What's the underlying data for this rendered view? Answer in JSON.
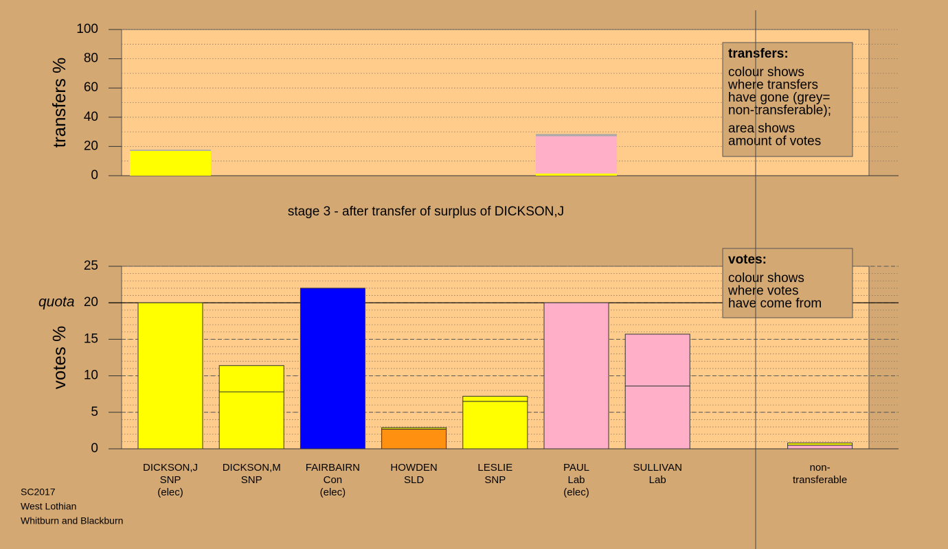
{
  "chart_data": [
    {
      "type": "stacked-bar",
      "ylabel": "transfers %",
      "ylim": [
        0,
        100
      ],
      "yticks": [
        0,
        20,
        40,
        60,
        80,
        100
      ],
      "minor_grid": 10,
      "stacks": [
        [
          {
            "color": "#ffff00",
            "value": 17
          },
          {
            "color": "#aaaaaa",
            "value": 0.8
          }
        ],
        [],
        [],
        [],
        [],
        [
          {
            "color": "#ffff00",
            "value": 1.5
          },
          {
            "color": "#ffb0c8",
            "value": 25.5
          },
          {
            "color": "#aaaaaa",
            "value": 1.5
          }
        ],
        [],
        [],
        []
      ],
      "note": {
        "title": "transfers:",
        "lines": [
          "colour shows",
          "where transfers",
          "have gone (grey=",
          "non-transferable);",
          "area shows",
          "amount of votes"
        ]
      }
    },
    {
      "type": "stacked-bar",
      "title": "stage 3 - after transfer of surplus of DICKSON,J",
      "ylabel": "votes %",
      "ylim": [
        0,
        25
      ],
      "yticks": [
        0,
        5,
        10,
        15,
        20,
        25
      ],
      "minor_grid": 1,
      "quota": {
        "value": 20,
        "label": "quota"
      },
      "categories": [
        [
          "DICKSON,J",
          "SNP",
          "(elec)"
        ],
        [
          "DICKSON,M",
          "SNP"
        ],
        [
          "FAIRBAIRN",
          "Con",
          "(elec)"
        ],
        [
          "HOWDEN",
          "SLD"
        ],
        [
          "LESLIE",
          "SNP"
        ],
        [
          "PAUL",
          "Lab",
          "(elec)"
        ],
        [
          "SULLIVAN",
          "Lab"
        ],
        null,
        [
          "non-",
          "transferable"
        ]
      ],
      "stacks": [
        [
          {
            "color": "#ffff00",
            "value": 20
          }
        ],
        [
          {
            "color": "#ffff00",
            "value": 7.8
          },
          {
            "color": "#ffff00",
            "value": 3.6
          }
        ],
        [
          {
            "color": "#0000ff",
            "value": 22
          }
        ],
        [
          {
            "color": "#ff9010",
            "value": 2.7
          },
          {
            "color": "#ffff00",
            "value": 0.2
          }
        ],
        [
          {
            "color": "#ffff00",
            "value": 6.5
          },
          {
            "color": "#ffff00",
            "value": 0.7
          }
        ],
        [
          {
            "color": "#ffb0c8",
            "value": 20
          }
        ],
        [
          {
            "color": "#ffb0c8",
            "value": 8.6
          },
          {
            "color": "#ffb0c8",
            "value": 7.1
          }
        ],
        [],
        [
          {
            "color": "#ffb0c8",
            "value": 0.5
          },
          {
            "color": "#ffff00",
            "value": 0.3
          }
        ]
      ],
      "note": {
        "title": "votes:",
        "lines": [
          "colour shows",
          "where votes",
          "have come from"
        ]
      }
    }
  ],
  "footer": [
    "SC2017",
    "West Lothian",
    "Whitburn and Blackburn"
  ]
}
